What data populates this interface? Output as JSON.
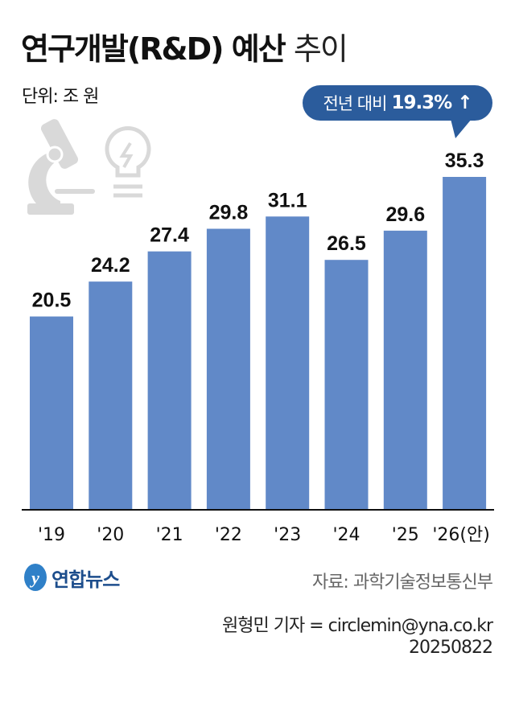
{
  "title_bold": "연구개발(R&D) 예산",
  "title_light": "추이",
  "unit": "단위: 조 원",
  "callout": {
    "prefix": "전년 대비",
    "value": "19.3% ↑",
    "color": "#2b5c9c"
  },
  "chart_data": {
    "type": "bar",
    "categories": [
      "'19",
      "'20",
      "'21",
      "'22",
      "'23",
      "'24",
      "'25",
      "'26(안)"
    ],
    "values": [
      20.5,
      24.2,
      27.4,
      29.8,
      31.1,
      26.5,
      29.6,
      35.3
    ],
    "value_labels": [
      "20.5",
      "24.2",
      "27.4",
      "29.8",
      "31.1",
      "26.5",
      "29.6",
      "35.3"
    ],
    "ylim": [
      0,
      35.3
    ],
    "bar_color": "#6189c8",
    "grid": false,
    "decor_icons": [
      "microscope-icon",
      "lightbulb-icon"
    ]
  },
  "logo": {
    "text": "연합뉴스",
    "color": "#1c4d8c"
  },
  "source": "자료: 과학기술정보통신부",
  "credit": "원형민 기자 = circlemin@yna.co.kr",
  "date": "20250822"
}
